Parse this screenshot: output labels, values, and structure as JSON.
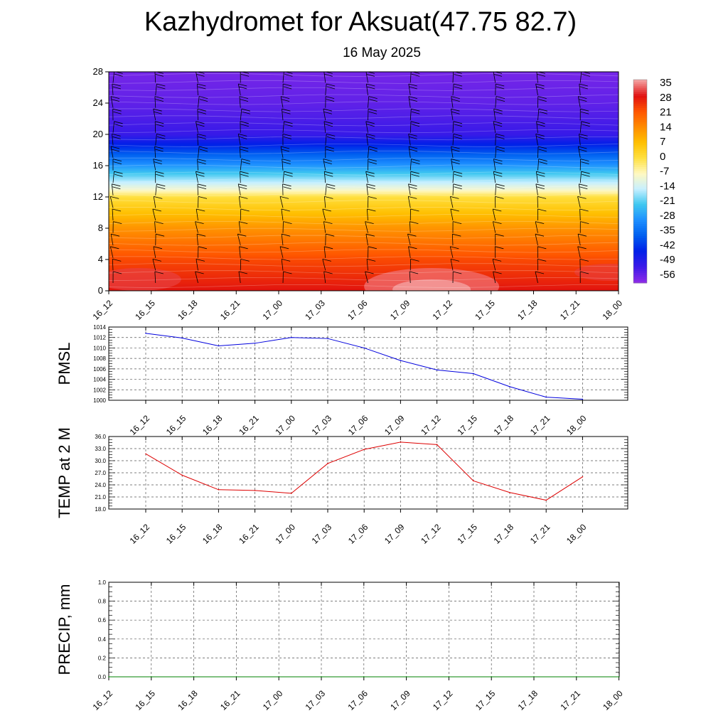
{
  "page": {
    "title": "Kazhydromet for Aksuat(47.75 82.7)",
    "subtitle": "16 May 2025"
  },
  "colors": {
    "pmsl_line": "#0000dd",
    "temp_line": "#dd0000",
    "precip_line": "#008000",
    "axis": "#000000",
    "grid": "#555555"
  },
  "chart_data": [
    {
      "type": "heatmap",
      "title": "",
      "xlabel": "",
      "ylabel": "",
      "x": [
        "16_12",
        "16_15",
        "16_18",
        "16_21",
        "17_00",
        "17_03",
        "17_06",
        "17_09",
        "17_12",
        "17_15",
        "17_18",
        "17_21",
        "18_00"
      ],
      "y_ticks": [
        0,
        4,
        8,
        12,
        16,
        20,
        24,
        28
      ],
      "ylim": [
        0,
        28
      ],
      "colorbar_labels": [
        "35",
        "28",
        "21",
        "14",
        "7",
        "0",
        "-7",
        "-14",
        "-21",
        "-28",
        "-35",
        "-42",
        "-49",
        "-56"
      ],
      "colorbar_colors": [
        "#f4a0a0",
        "#e01010",
        "#ff5500",
        "#ff8c00",
        "#ffc000",
        "#ffe040",
        "#fff8c0",
        "#c8f0ff",
        "#40c8f0",
        "#1e90ff",
        "#0060f0",
        "#0020e8",
        "#3a1ae8",
        "#8a2ae8"
      ],
      "level_temperature": [
        {
          "level": 0,
          "value": 30
        },
        {
          "level": 4,
          "value": 24
        },
        {
          "level": 8,
          "value": 14
        },
        {
          "level": 12,
          "value": 0
        },
        {
          "level": 13,
          "value": -10
        },
        {
          "level": 16,
          "value": -30
        },
        {
          "level": 20,
          "value": -54
        },
        {
          "level": 24,
          "value": -58
        },
        {
          "level": 28,
          "value": -60
        }
      ],
      "legend": "right",
      "wind_barbs": true
    },
    {
      "type": "line",
      "title": "",
      "ylabel": "PMSL",
      "xlabel": "",
      "categories": [
        "16_12",
        "16_15",
        "16_18",
        "16_21",
        "17_00",
        "17_03",
        "17_06",
        "17_09",
        "17_12",
        "17_15",
        "17_18",
        "17_21",
        "18_00"
      ],
      "series": [
        {
          "values": [
            1012.8,
            1011.9,
            1010.4,
            1010.9,
            1012.0,
            1011.8,
            1010.0,
            1007.6,
            1005.8,
            1005.1,
            1002.6,
            1000.6,
            1000.2
          ]
        }
      ],
      "ylim": [
        1000,
        1014
      ],
      "y_ticks": [
        "1000",
        "1002",
        "1004",
        "1006",
        "1008",
        "1010",
        "1012",
        "1014"
      ],
      "grid": true
    },
    {
      "type": "line",
      "title": "",
      "ylabel": "TEMP at 2 M",
      "xlabel": "",
      "categories": [
        "16_12",
        "16_15",
        "16_18",
        "16_21",
        "17_00",
        "17_03",
        "17_06",
        "17_09",
        "17_12",
        "17_15",
        "17_18",
        "17_21",
        "18_00"
      ],
      "series": [
        {
          "values": [
            31.7,
            26.4,
            22.8,
            22.6,
            21.9,
            29.3,
            32.8,
            34.6,
            34.0,
            25.0,
            22.1,
            20.2,
            26.0
          ]
        }
      ],
      "ylim": [
        18,
        36
      ],
      "y_ticks": [
        "18.0",
        "21.0",
        "24.0",
        "27.0",
        "30.0",
        "33.0",
        "36.0"
      ],
      "grid": true
    },
    {
      "type": "line",
      "title": "",
      "ylabel": "PRECIP, mm",
      "xlabel": "",
      "categories": [
        "16_12",
        "16_15",
        "16_18",
        "16_21",
        "17_00",
        "17_03",
        "17_06",
        "17_09",
        "17_12",
        "17_15",
        "17_18",
        "17_21",
        "18_00"
      ],
      "series": [
        {
          "values": [
            0,
            0,
            0,
            0,
            0,
            0,
            0,
            0,
            0,
            0,
            0,
            0,
            0
          ]
        }
      ],
      "ylim": [
        0,
        1
      ],
      "y_ticks": [
        "0.0",
        "0.2",
        "0.4",
        "0.6",
        "0.8",
        "1.0"
      ],
      "grid": true
    }
  ]
}
